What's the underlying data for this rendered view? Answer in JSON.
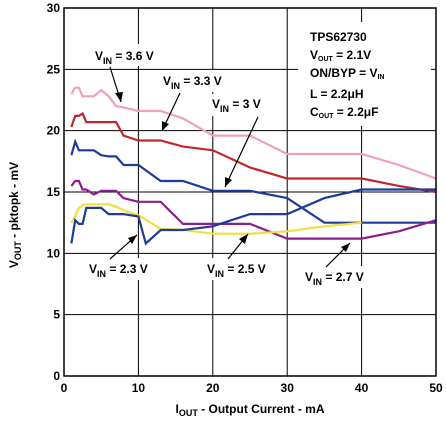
{
  "chart_data": {
    "type": "line",
    "xlabel": "I_OUT - Output Current - mA",
    "xlabel_main": "I",
    "xlabel_sub": "OUT",
    "xlabel_rest": " - Output Current - mA",
    "ylabel_main": "V",
    "ylabel_sub": "OUT",
    "ylabel_rest": " - pktopk - mV",
    "xlim": [
      0,
      50
    ],
    "ylim": [
      0,
      30
    ],
    "xticks": [
      "0",
      "10",
      "20",
      "30",
      "40",
      "50"
    ],
    "yticks": [
      "0",
      "5",
      "10",
      "15",
      "20",
      "25",
      "30"
    ],
    "grid": true,
    "annotation": {
      "line1": "TPS62730",
      "line2_main": "V",
      "line2_sub": "OUT",
      "line2_rest": " = 2.1V",
      "line3_main": "ON/BYP = V",
      "line3_sub": "IN",
      "line4": "L = 2.2μH",
      "line5_main": "C",
      "line5_sub": "OUT",
      "line5_rest": " = 2.2μF"
    },
    "series": [
      {
        "name": "V_IN = 3.6 V",
        "label_main": "V",
        "label_sub": "IN",
        "label_rest": " = 3.6 V",
        "color": "#f0a0b8",
        "x": [
          1,
          1.5,
          2,
          2.5,
          3,
          4,
          5,
          6,
          7,
          8,
          10,
          13,
          16,
          20,
          25,
          30,
          35,
          40,
          45,
          50
        ],
        "y": [
          23.0,
          23.5,
          23.5,
          22.8,
          22.8,
          22.8,
          23.3,
          22.8,
          22.0,
          21.9,
          21.6,
          21.6,
          21.0,
          19.6,
          19.6,
          18.1,
          18.1,
          18.1,
          17.2,
          16.1
        ]
      },
      {
        "name": "V_IN = 3.3 V",
        "label_main": "V",
        "label_sub": "IN",
        "label_rest": " = 3.3 V",
        "color": "#c0282d",
        "x": [
          1,
          1.5,
          2,
          2.5,
          3,
          4,
          5,
          6,
          7,
          8,
          10,
          13,
          16,
          20,
          25,
          30,
          35,
          40,
          45,
          50
        ],
        "y": [
          20.3,
          21.2,
          21.2,
          21.4,
          20.7,
          20.7,
          20.7,
          20.7,
          20.7,
          19.6,
          19.2,
          19.2,
          18.7,
          18.4,
          17.0,
          16.1,
          16.1,
          16.1,
          15.5,
          15.0
        ]
      },
      {
        "name": "V_IN = 3 V",
        "label_main": "V",
        "label_sub": "IN",
        "label_rest": " = 3 V",
        "color": "#1e3c96",
        "x": [
          1,
          1.5,
          2,
          2.5,
          3,
          4,
          5,
          6,
          7,
          8,
          10,
          13,
          16,
          20,
          25,
          30,
          35,
          40,
          45,
          50
        ],
        "y": [
          18.0,
          19.1,
          18.4,
          18.4,
          18.4,
          18.4,
          18.0,
          17.9,
          17.9,
          17.2,
          17.2,
          15.9,
          15.9,
          15.1,
          15.1,
          14.5,
          12.5,
          12.5,
          12.5,
          12.5
        ]
      },
      {
        "name": "V_IN = 2.7 V",
        "label_main": "V",
        "label_sub": "IN",
        "label_rest": " = 2.7 V",
        "color": "#8c1f8c",
        "x": [
          1,
          1.5,
          2,
          2.5,
          3,
          4,
          5,
          6,
          7,
          8,
          10,
          13,
          16,
          20,
          25,
          30,
          35,
          40,
          45,
          50
        ],
        "y": [
          15.5,
          15.9,
          15.9,
          15.2,
          15.2,
          14.8,
          15.1,
          15.1,
          15.1,
          14.5,
          14.2,
          14.2,
          12.4,
          12.4,
          12.4,
          11.2,
          11.2,
          11.2,
          11.8,
          12.7
        ]
      },
      {
        "name": "V_IN = 2.5 V",
        "label_main": "V",
        "label_sub": "IN",
        "label_rest": " = 2.5 V",
        "color": "#f0e040",
        "x": [
          1,
          1.5,
          2,
          2.5,
          3,
          4,
          5,
          6,
          7,
          8,
          10,
          13,
          16,
          20,
          25,
          30,
          35,
          40
        ],
        "y": [
          12.5,
          13.0,
          13.7,
          13.9,
          14.0,
          14.0,
          14.0,
          14.0,
          13.8,
          13.5,
          13.1,
          12.0,
          11.9,
          11.6,
          11.6,
          11.8,
          12.2,
          12.5
        ]
      },
      {
        "name": "V_IN = 2.3 V",
        "label_main": "V",
        "label_sub": "IN",
        "label_rest": " = 2.3 V",
        "color": "#1e3c96",
        "x": [
          1,
          1.5,
          2,
          2.5,
          3,
          4,
          5,
          6,
          7,
          8,
          10,
          11,
          13,
          16,
          20,
          25,
          30,
          35,
          40,
          45,
          50
        ],
        "y": [
          10.8,
          12.7,
          12.4,
          12.4,
          13.7,
          13.7,
          13.7,
          13.2,
          13.2,
          13.2,
          13.0,
          10.8,
          11.9,
          11.9,
          12.2,
          13.2,
          13.2,
          14.5,
          15.2,
          15.2,
          15.2
        ]
      }
    ]
  }
}
